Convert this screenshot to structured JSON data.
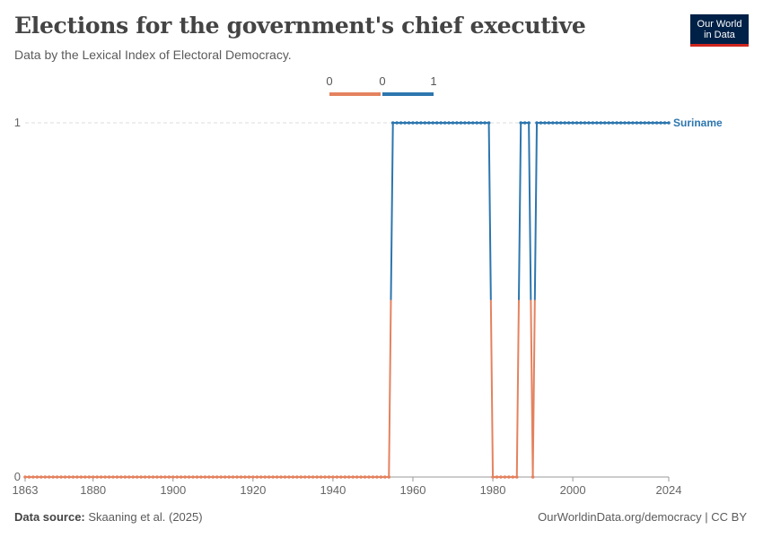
{
  "header": {
    "title": "Elections for the government's chief executive",
    "subtitle": "Data by the Lexical Index of Electoral Democracy.",
    "logo_line1": "Our World",
    "logo_line2": "in Data"
  },
  "footer": {
    "source_label": "Data source:",
    "source_text": "Skaaning et al. (2025)",
    "url_text": "OurWorldinData.org/democracy | CC BY"
  },
  "colors": {
    "low": "#e4825f",
    "high": "#2d76ae",
    "grid": "#dddddd",
    "axis": "#999999"
  },
  "chart_data": {
    "type": "line",
    "title": "Elections for the government's chief executive",
    "subtitle": "Data by the Lexical Index of Electoral Democracy.",
    "legend": {
      "placement": "top-center",
      "items": [
        {
          "low_label": "0",
          "high_label": "0",
          "color": "#e4825f"
        },
        {
          "low_label": "0",
          "high_label": "1",
          "color": "#2d76ae"
        }
      ]
    },
    "x_ticks": [
      1863,
      1880,
      1900,
      1920,
      1940,
      1960,
      1980,
      2000,
      2024
    ],
    "y_ticks": [
      0,
      1
    ],
    "xlim": [
      1863,
      2024
    ],
    "ylim": [
      0,
      1
    ],
    "grid": true,
    "series": [
      {
        "name": "Suriname",
        "segments": [
          {
            "from": 1863,
            "to": 1954,
            "value": 0
          },
          {
            "from": 1955,
            "to": 1979,
            "value": 1
          },
          {
            "from": 1980,
            "to": 1986,
            "value": 0
          },
          {
            "from": 1987,
            "to": 1989,
            "value": 1
          },
          {
            "from": 1990,
            "to": 1990,
            "value": 0
          },
          {
            "from": 1991,
            "to": 2024,
            "value": 1
          }
        ]
      }
    ]
  }
}
